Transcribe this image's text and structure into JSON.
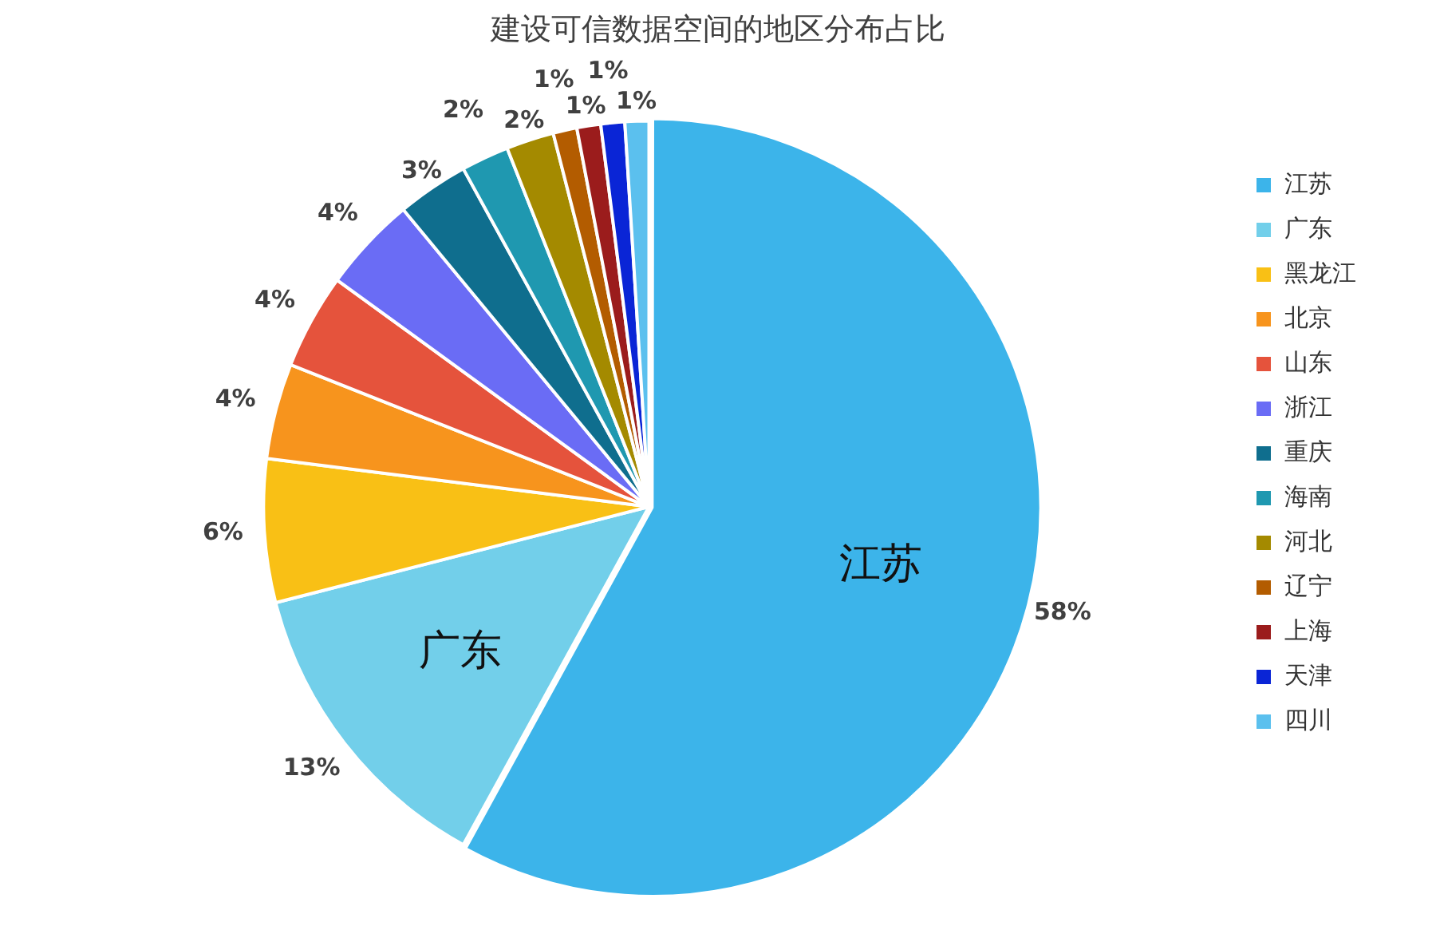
{
  "chart_data": {
    "type": "pie",
    "title": "建设可信数据空间的地区分布占比",
    "categories": [
      "江苏",
      "广东",
      "黑龙江",
      "北京",
      "山东",
      "浙江",
      "重庆",
      "海南",
      "河北",
      "辽宁",
      "上海",
      "天津",
      "四川"
    ],
    "values": [
      58,
      13,
      6,
      4,
      4,
      4,
      3,
      2,
      2,
      1,
      1,
      1,
      1
    ],
    "value_labels": [
      "58%",
      "13%",
      "6%",
      "4%",
      "4%",
      "4%",
      "3%",
      "2%",
      "2%",
      "1%",
      "1%",
      "1%",
      "1%"
    ],
    "colors": [
      "#3cb4ea",
      "#72cfea",
      "#f9c015",
      "#f7941d",
      "#e5533c",
      "#6a6cf5",
      "#0f6e8e",
      "#1f98b0",
      "#a48a00",
      "#b35c00",
      "#9b1c1c",
      "#0a25d6",
      "#5bc0ee"
    ],
    "annotations": [
      {
        "text": "江苏",
        "x": "江苏"
      },
      {
        "text": "广东",
        "x": "广东"
      }
    ],
    "legend": "right"
  }
}
